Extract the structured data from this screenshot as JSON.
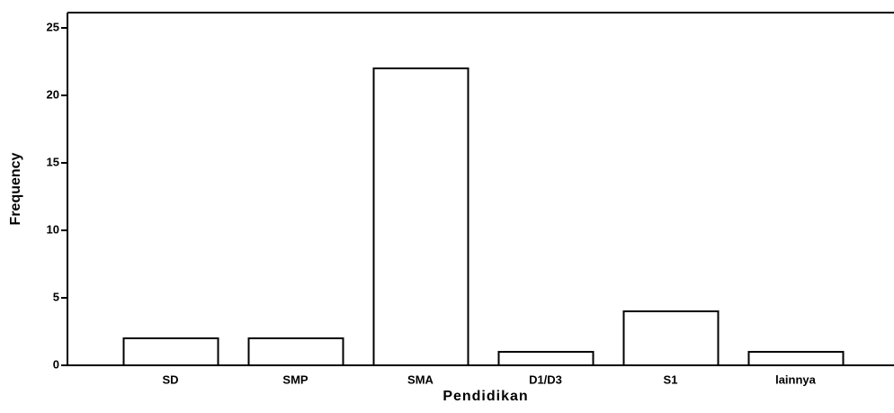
{
  "chart_data": {
    "type": "bar",
    "x_label": "Pendidikan",
    "y_label": "Frequency",
    "categories": [
      "SD",
      "SMP",
      "SMA",
      "D1/D3",
      "S1",
      "lainnya"
    ],
    "values": [
      2,
      2,
      22,
      1,
      4,
      1
    ],
    "color": "#ffffff",
    "ylim": [
      0,
      26
    ],
    "yticks": [
      0,
      5,
      10,
      15,
      20,
      25
    ],
    "grid": false
  }
}
